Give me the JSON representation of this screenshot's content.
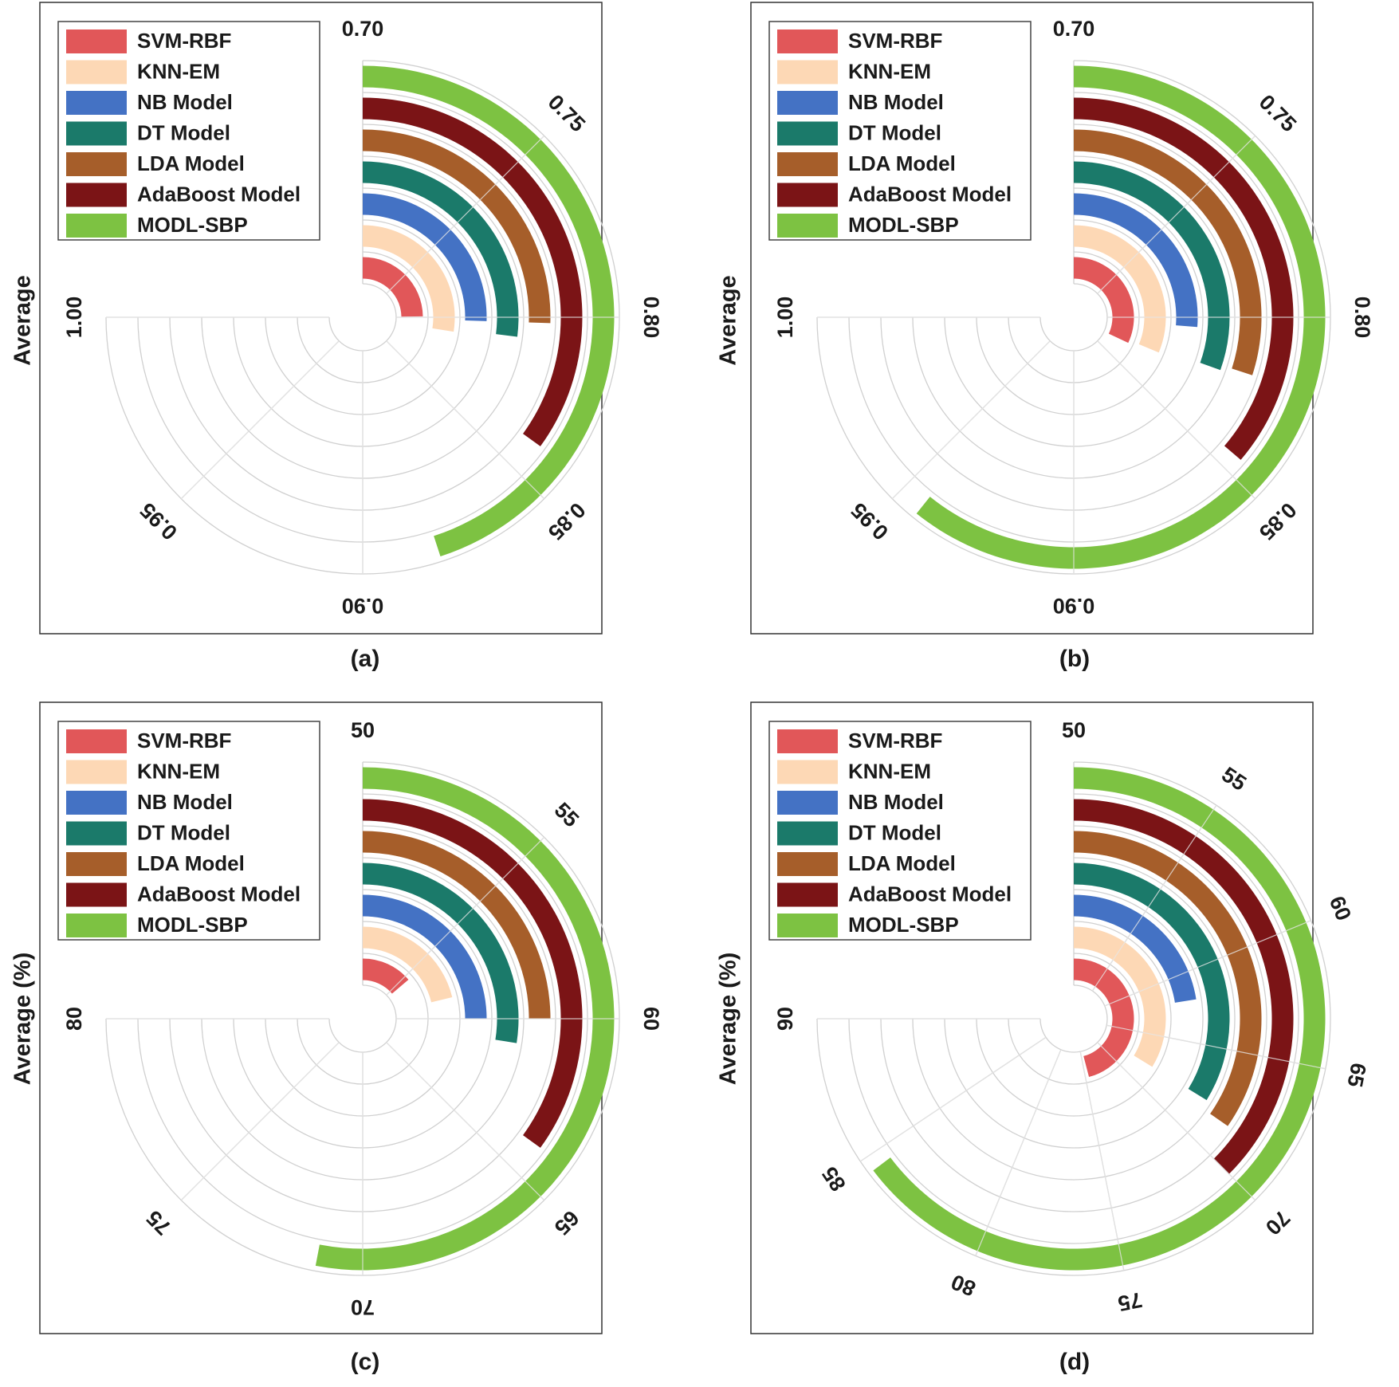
{
  "legend_entries": [
    "SVM-RBF",
    "KNN-EM",
    "NB Model",
    "DT Model",
    "LDA Model",
    "AdaBoost Model",
    "MODL-SBP"
  ],
  "series_colors": [
    "#e15759",
    "#fdd8b5",
    "#4472c4",
    "#1b7a6a",
    "#a65e2a",
    "#7b1416",
    "#7dc242"
  ],
  "grid_color": "#d0d0d0",
  "frame_color": "#333333",
  "chart_data": [
    {
      "type": "radial-bar",
      "panel_label": "(a)",
      "ylabel": "Average",
      "scale": [
        0.7,
        1.0
      ],
      "ticks": [
        "0.70",
        "0.75",
        "0.80",
        "0.85",
        "0.90",
        "0.95",
        "1.00"
      ],
      "series": [
        {
          "name": "SVM-RBF",
          "value": 0.799
        },
        {
          "name": "KNN-EM",
          "value": 0.81
        },
        {
          "name": "NB Model",
          "value": 0.802
        },
        {
          "name": "DT Model",
          "value": 0.808
        },
        {
          "name": "LDA Model",
          "value": 0.802
        },
        {
          "name": "AdaBoost Model",
          "value": 0.84
        },
        {
          "name": "MODL-SBP",
          "value": 0.88
        }
      ]
    },
    {
      "type": "radial-bar",
      "panel_label": "(b)",
      "ylabel": "Average",
      "scale": [
        0.7,
        1.0
      ],
      "ticks": [
        "0.70",
        "0.75",
        "0.80",
        "0.85",
        "0.90",
        "0.95",
        "1.00"
      ],
      "series": [
        {
          "name": "SVM-RBF",
          "value": 0.828
        },
        {
          "name": "KNN-EM",
          "value": 0.825
        },
        {
          "name": "NB Model",
          "value": 0.805
        },
        {
          "name": "DT Model",
          "value": 0.822
        },
        {
          "name": "LDA Model",
          "value": 0.82
        },
        {
          "name": "AdaBoost Model",
          "value": 0.845
        },
        {
          "name": "MODL-SBP",
          "value": 0.943
        }
      ]
    },
    {
      "type": "radial-bar",
      "panel_label": "(c)",
      "ylabel": "Average (%)",
      "scale": [
        50,
        80
      ],
      "ticks": [
        "50",
        "55",
        "60",
        "65",
        "70",
        "75",
        "80"
      ],
      "series": [
        {
          "name": "SVM-RBF",
          "value": 55.5
        },
        {
          "name": "KNN-EM",
          "value": 58.5
        },
        {
          "name": "NB Model",
          "value": 60.0
        },
        {
          "name": "DT Model",
          "value": 61.0
        },
        {
          "name": "LDA Model",
          "value": 60.0
        },
        {
          "name": "AdaBoost Model",
          "value": 64.0
        },
        {
          "name": "MODL-SBP",
          "value": 71.2
        }
      ]
    },
    {
      "type": "radial-bar",
      "panel_label": "(d)",
      "ylabel": "Average (%)",
      "scale": [
        50,
        90
      ],
      "ticks": [
        "50",
        "55",
        "60",
        "65",
        "70",
        "75",
        "80",
        "85",
        "90"
      ],
      "series": [
        {
          "name": "SVM-RBF",
          "value": 74.5
        },
        {
          "name": "KNN-EM",
          "value": 68.0
        },
        {
          "name": "NB Model",
          "value": 62.0
        },
        {
          "name": "DT Model",
          "value": 68.0
        },
        {
          "name": "LDA Model",
          "value": 68.5
        },
        {
          "name": "AdaBoost Model",
          "value": 70.0
        },
        {
          "name": "MODL-SBP",
          "value": 84.5
        }
      ]
    }
  ]
}
